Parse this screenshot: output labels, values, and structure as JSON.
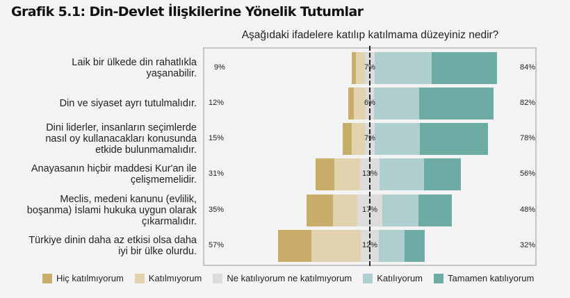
{
  "title": "Grafik 5.1: Din-Devlet İlişkilerine Yönelik Tutumlar",
  "subtitle": "Aşağıdaki ifadelere katılıp katılmama düzeyiniz nedir?",
  "colors": {
    "hic_katilmiyorum": "#c9ad6b",
    "katilmiyorum": "#e1d3ae",
    "ne_katiliyorum": "#dcdcdd",
    "katiliyorum": "#afcfce",
    "tamamen_katiliyorum": "#6dab a5"
  },
  "legend": [
    {
      "label": "Hiç katılmıyorum",
      "color": "#c9ad6b"
    },
    {
      "label": "Katılmıyorum",
      "color": "#e1d3ae"
    },
    {
      "label": "Ne katılıyorum ne katılmıyorum",
      "color": "#dcdcdd"
    },
    {
      "label": "Katılıyorum",
      "color": "#afcfce"
    },
    {
      "label": "Tamamen katılıyorum",
      "color": "#6daba5"
    }
  ],
  "rows": [
    {
      "label": [
        "Laik bir ülkede din rahatlıkla",
        "yaşanabilir."
      ],
      "disagree_total": "9%",
      "neutral": "7%",
      "agree_total": "84%"
    },
    {
      "label": [
        "Din ve siyaset ayrı tutulmalıdır."
      ],
      "disagree_total": "12%",
      "neutral": "6%",
      "agree_total": "82%"
    },
    {
      "label": [
        "Dini liderler, insanların seçimlerde",
        "nasıl oy kullanacakları konusunda",
        "etkide bulunmamalıdır."
      ],
      "disagree_total": "15%",
      "neutral": "7%",
      "agree_total": "78%"
    },
    {
      "label": [
        "Anayasanın hiçbir maddesi Kur'an ile",
        "çelişmemelidir."
      ],
      "disagree_total": "31%",
      "neutral": "13%",
      "agree_total": "56%"
    },
    {
      "label": [
        "Meclis, medeni kanunu (evlilik,",
        "boşanma) İslami hukuka uygun olarak",
        "çıkarmalıdır."
      ],
      "disagree_total": "35%",
      "neutral": "17%",
      "agree_total": "48%"
    },
    {
      "label": [
        "Türkiye dinin daha az etkisi olsa daha",
        "iyi bir ülke olurdu."
      ],
      "disagree_total": "57%",
      "neutral": "12%",
      "agree_total": "32%"
    }
  ],
  "chart_data": {
    "type": "bar",
    "subtype": "diverging stacked horizontal bar (Likert)",
    "title": "Grafik 5.1: Din-Devlet İlişkilerine Yönelik Tutumlar",
    "subtitle": "Aşağıdaki ifadelere katılıp katılmama düzeyiniz nedir?",
    "xlabel": "",
    "ylabel": "",
    "unit": "%",
    "grid": false,
    "legend_position": "bottom",
    "categories": [
      "Laik bir ülkede din rahatlıkla yaşanabilir.",
      "Din ve siyaset ayrı tutulmalıdır.",
      "Dini liderler, insanların seçimlerde nasıl oy kullanacakları konusunda etkide bulunmamalıdır.",
      "Anayasanın hiçbir maddesi Kur'an ile çelişmemelidir.",
      "Meclis, medeni kanunu (evlilik, boşanma) İslami hukuka uygun olarak çıkarmalıdır.",
      "Türkiye dinin daha az etkisi olsa daha iyi bir ülke olurdu."
    ],
    "series": [
      {
        "name": "Hiç katılmıyorum",
        "color": "#c9ad6b",
        "values": [
          3,
          4,
          6,
          13,
          18,
          23
        ]
      },
      {
        "name": "Katılmıyorum",
        "color": "#e1d3ae",
        "values": [
          6,
          8,
          9,
          18,
          17,
          34
        ]
      },
      {
        "name": "Ne katılıyorum ne katılmıyorum",
        "color": "#dcdcdd",
        "values": [
          7,
          6,
          7,
          13,
          17,
          12
        ]
      },
      {
        "name": "Katılıyorum",
        "color": "#afcfce",
        "values": [
          39,
          31,
          31,
          31,
          25,
          18
        ]
      },
      {
        "name": "Tamamen katılıyorum",
        "color": "#6daba5",
        "values": [
          45,
          51,
          47,
          25,
          23,
          14
        ]
      }
    ],
    "annotations": {
      "disagree_totals": [
        9,
        12,
        15,
        31,
        35,
        57
      ],
      "neutral_labels": [
        7,
        6,
        7,
        13,
        17,
        12
      ],
      "agree_totals": [
        84,
        82,
        78,
        56,
        48,
        32
      ]
    }
  }
}
